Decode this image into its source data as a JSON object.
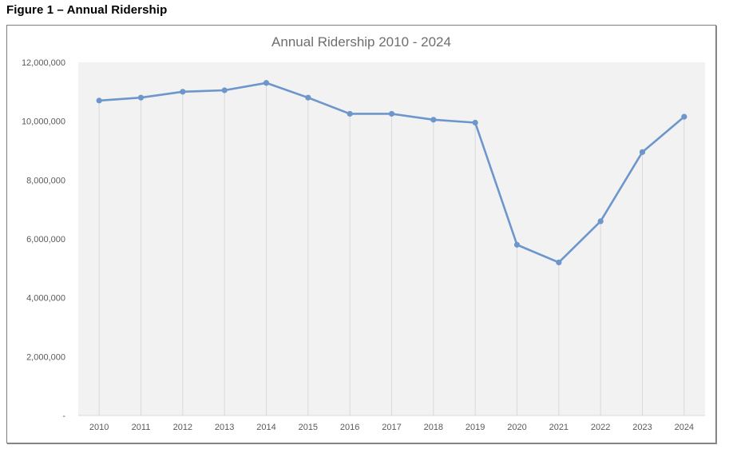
{
  "figure": {
    "caption": "Figure 1 – Annual Ridership"
  },
  "chart_data": {
    "type": "line",
    "title": "Annual Ridership 2010 - 2024",
    "categories": [
      "2010",
      "2011",
      "2012",
      "2013",
      "2014",
      "2015",
      "2016",
      "2017",
      "2018",
      "2019",
      "2020",
      "2021",
      "2022",
      "2023",
      "2024"
    ],
    "series": [
      {
        "name": "Annual Ridership",
        "values": [
          10700000,
          10800000,
          11000000,
          11050000,
          11300000,
          10800000,
          10250000,
          10250000,
          10050000,
          9950000,
          5800000,
          5200000,
          6600000,
          8950000,
          10150000
        ]
      }
    ],
    "xlabel": "",
    "ylabel": "",
    "ylim": [
      0,
      12000000
    ],
    "ytick_interval": 2000000,
    "yticks": [
      {
        "value": 12000000,
        "label": "12,000,000"
      },
      {
        "value": 10000000,
        "label": "10,000,000"
      },
      {
        "value": 8000000,
        "label": "8,000,000"
      },
      {
        "value": 6000000,
        "label": "6,000,000"
      },
      {
        "value": 4000000,
        "label": "4,000,000"
      },
      {
        "value": 2000000,
        "label": "2,000,000"
      },
      {
        "value": 0,
        "label": "-"
      }
    ],
    "legend": "none",
    "grid": "vertical-drop-lines-from-points",
    "markers": "circle",
    "colors": {
      "line": "#6d96cc",
      "marker": "#6d96cc",
      "plot_bg": "#f2f2f2",
      "drop_line": "#d9d9d9",
      "axis_line": "#d9d9d9",
      "axis_text": "#595959",
      "title_text": "#6e6e6e",
      "chart_border": "#7f7f7f"
    }
  }
}
